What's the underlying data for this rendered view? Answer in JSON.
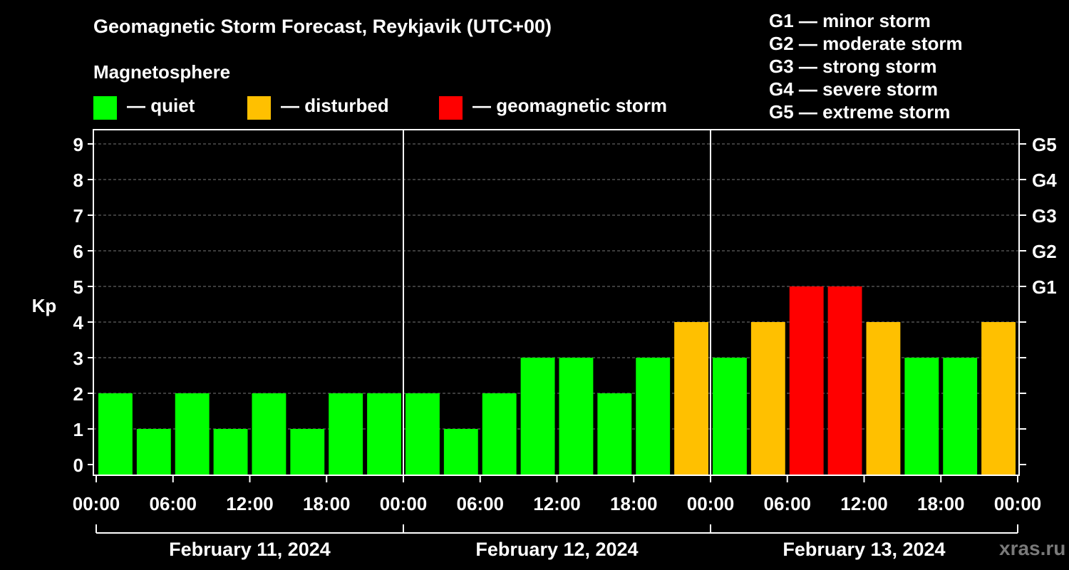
{
  "chart_data": {
    "type": "bar",
    "title": "Geomagnetic Storm Forecast, Reykjavik (UTC+00)",
    "subtitle": "Magnetosphere",
    "ylabel": "Kp",
    "ylim": [
      0,
      9
    ],
    "yticks": [
      "0",
      "1",
      "2",
      "3",
      "4",
      "5",
      "6",
      "7",
      "8",
      "9"
    ],
    "right_ticks": [
      {
        "kp": 5,
        "label": "G1"
      },
      {
        "kp": 6,
        "label": "G2"
      },
      {
        "kp": 7,
        "label": "G3"
      },
      {
        "kp": 8,
        "label": "G4"
      },
      {
        "kp": 9,
        "label": "G5"
      }
    ],
    "xticks": [
      "00:00",
      "06:00",
      "12:00",
      "18:00",
      "00:00",
      "06:00",
      "12:00",
      "18:00",
      "00:00",
      "06:00",
      "12:00",
      "18:00",
      "00:00"
    ],
    "days": [
      "February 11, 2024",
      "February 12, 2024",
      "February 13, 2024"
    ],
    "bins_per_day": 8,
    "values": [
      2,
      1,
      2,
      1,
      2,
      1,
      2,
      2,
      2,
      1,
      2,
      3,
      3,
      2,
      3,
      4,
      3,
      4,
      5,
      5,
      4,
      3,
      3,
      4
    ],
    "grid": "horizontal dashed",
    "legend": [
      {
        "label": "— quiet",
        "color": "#00ff00"
      },
      {
        "label": "— disturbed",
        "color": "#ffc000"
      },
      {
        "label": "— geomagnetic storm",
        "color": "#ff0000"
      }
    ],
    "storm_scale": [
      "G1 — minor storm",
      "G2 — moderate storm",
      "G3 — strong storm",
      "G4 — severe storm",
      "G5 — extreme storm"
    ],
    "colors": {
      "quiet": "#00ff00",
      "disturbed": "#ffc000",
      "storm": "#ff0000",
      "grid": "#777777"
    }
  },
  "watermark": "xras.ru"
}
